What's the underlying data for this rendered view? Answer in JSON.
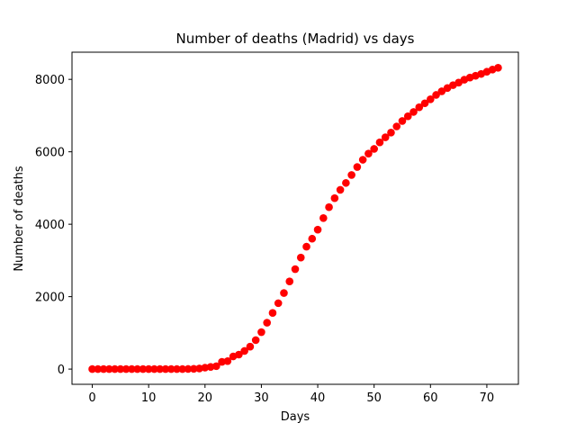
{
  "chart_data": {
    "type": "scatter",
    "title": "Number of deaths (Madrid) vs days",
    "xlabel": "Days",
    "ylabel": "Number of deaths",
    "xlim": [
      -3.6,
      75.6
    ],
    "ylim": [
      -420,
      8750
    ],
    "xticks": [
      0,
      10,
      20,
      30,
      40,
      50,
      60,
      70
    ],
    "yticks": [
      0,
      2000,
      4000,
      6000,
      8000
    ],
    "grid": false,
    "marker_color": "#ff0000",
    "series": [
      {
        "x": [
          0,
          1,
          2,
          3,
          4,
          5,
          6,
          7,
          8,
          9,
          10,
          11,
          12,
          13,
          14,
          15,
          16,
          17,
          18,
          19,
          20,
          21,
          22,
          23,
          24,
          25,
          26,
          27,
          28,
          29,
          30,
          31,
          32,
          33,
          34,
          35,
          36,
          37,
          38,
          39,
          40,
          41,
          42,
          43,
          44,
          45,
          46,
          47,
          48,
          49,
          50,
          51,
          52,
          53,
          54,
          55,
          56,
          57,
          58,
          59,
          60,
          61,
          62,
          63,
          64,
          65,
          66,
          67,
          68,
          69,
          70,
          71,
          72
        ],
        "y": [
          0,
          0,
          0,
          0,
          0,
          0,
          0,
          0,
          0,
          0,
          0,
          0,
          0,
          0,
          0,
          0,
          0,
          3,
          8,
          16,
          40,
          60,
          80,
          200,
          220,
          350,
          400,
          500,
          620,
          800,
          1020,
          1280,
          1550,
          1820,
          2100,
          2420,
          2760,
          3080,
          3380,
          3600,
          3850,
          4170,
          4470,
          4720,
          4950,
          5140,
          5360,
          5580,
          5780,
          5950,
          6080,
          6260,
          6400,
          6530,
          6700,
          6850,
          6980,
          7100,
          7230,
          7340,
          7450,
          7570,
          7670,
          7760,
          7840,
          7910,
          7990,
          8050,
          8100,
          8150,
          8210,
          8270,
          8320
        ]
      }
    ]
  }
}
